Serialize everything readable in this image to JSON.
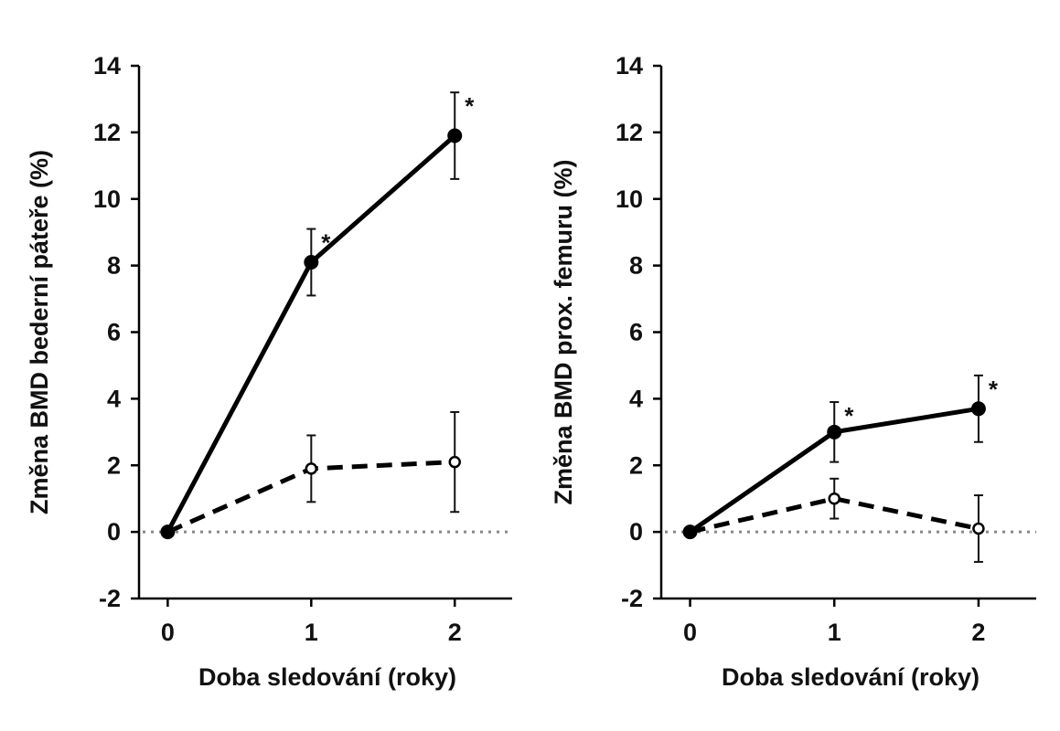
{
  "chart_data": [
    {
      "type": "line",
      "xlabel": "Doba sledování (roky)",
      "ylabel": "Změna BMD bederní páteře (%)",
      "xlim": [
        -0.2,
        2.4
      ],
      "ylim": [
        -2,
        14
      ],
      "x_ticks": [
        "0",
        "1",
        "2"
      ],
      "y_ticks": [
        "-2",
        "0",
        "2",
        "4",
        "6",
        "8",
        "10",
        "12",
        "14"
      ],
      "reference_line_y": 0,
      "series": [
        {
          "style": "solid-filled",
          "x": [
            0,
            1,
            2
          ],
          "y": [
            0,
            8.1,
            11.9
          ],
          "err_low": [
            0,
            7.1,
            10.6
          ],
          "err_high": [
            0,
            9.1,
            13.2
          ],
          "significance": [
            "",
            "*",
            "*"
          ]
        },
        {
          "style": "dashed-open",
          "x": [
            0,
            1,
            2
          ],
          "y": [
            0,
            1.9,
            2.1
          ],
          "err_low": [
            0,
            0.9,
            0.6
          ],
          "err_high": [
            0,
            2.9,
            3.6
          ],
          "significance": [
            "",
            "",
            ""
          ]
        }
      ]
    },
    {
      "type": "line",
      "xlabel": "Doba sledování (roky)",
      "ylabel": "Změna BMD prox. femuru (%)",
      "xlim": [
        -0.2,
        2.4
      ],
      "ylim": [
        -2,
        14
      ],
      "x_ticks": [
        "0",
        "1",
        "2"
      ],
      "y_ticks": [
        "-2",
        "0",
        "2",
        "4",
        "6",
        "8",
        "10",
        "12",
        "14"
      ],
      "reference_line_y": 0,
      "series": [
        {
          "style": "solid-filled",
          "x": [
            0,
            1,
            2
          ],
          "y": [
            0,
            3.0,
            3.7
          ],
          "err_low": [
            0,
            2.1,
            2.7
          ],
          "err_high": [
            0,
            3.9,
            4.7
          ],
          "significance": [
            "",
            "*",
            "*"
          ]
        },
        {
          "style": "dashed-open",
          "x": [
            0,
            1,
            2
          ],
          "y": [
            0,
            1.0,
            0.1
          ],
          "err_low": [
            0,
            0.4,
            -0.9
          ],
          "err_high": [
            0,
            1.6,
            1.1
          ],
          "significance": [
            "",
            "",
            ""
          ]
        }
      ]
    }
  ]
}
